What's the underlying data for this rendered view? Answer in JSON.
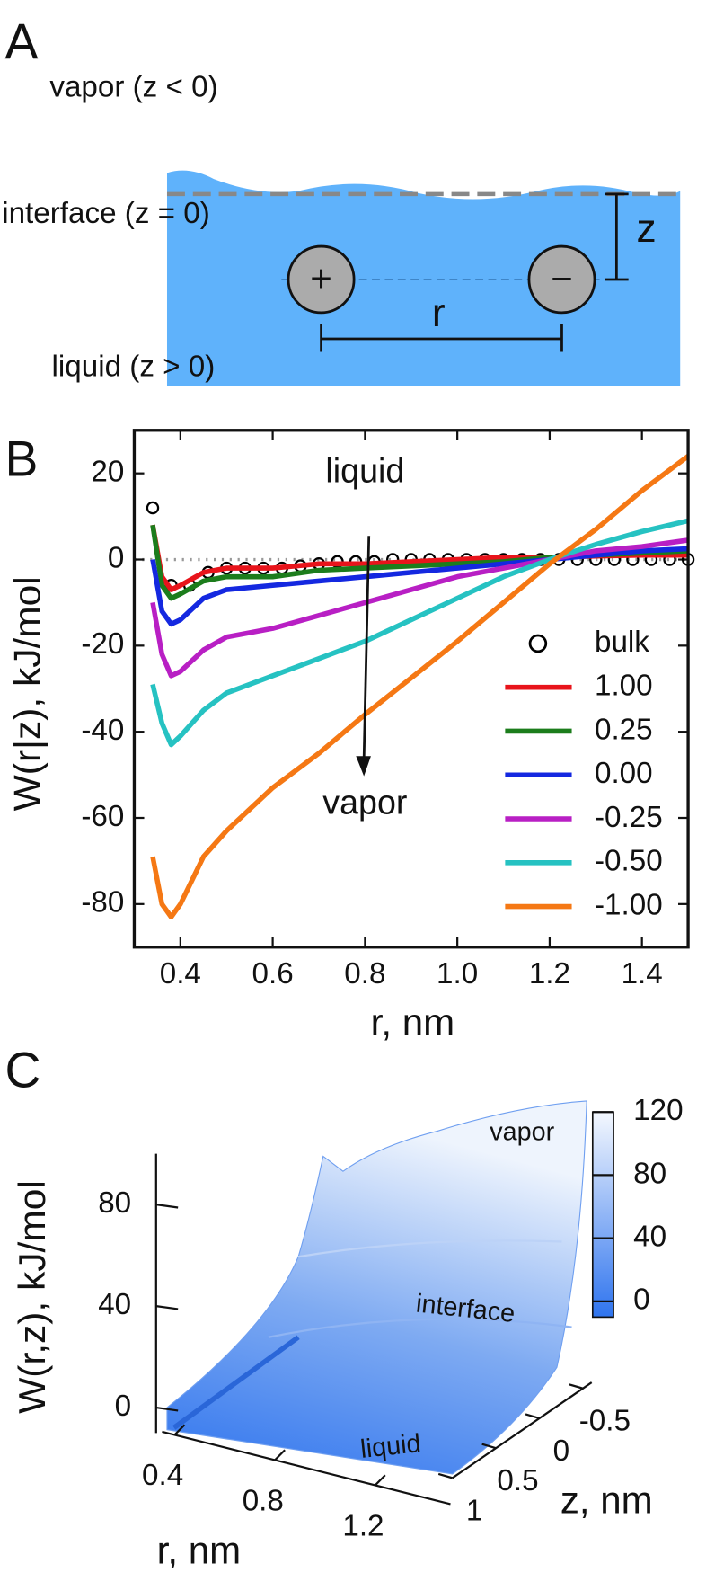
{
  "diagram": {
    "panel_label": "A",
    "vapor": "vapor (z < 0)",
    "interface": "interface (z = 0)",
    "liquid": "liquid (z > 0)",
    "cation": "+",
    "anion": "−",
    "r_label": "r",
    "z_label": "z"
  },
  "chart_data": [
    {
      "type": "line",
      "panel_label": "B",
      "xlabel": "r, nm",
      "ylabel": "W(r|z), kJ/mol",
      "xlim": [
        0.3,
        1.5
      ],
      "ylim": [
        -90,
        30
      ],
      "xticks": [
        0.4,
        0.6,
        0.8,
        {
          "value": 1,
          "label": "1.0"
        },
        1.2,
        1.4
      ],
      "yticks": [
        -80,
        -60,
        -40,
        -20,
        0,
        20
      ],
      "zero_line": true,
      "legend": "lower right",
      "annotations": [
        {
          "text": "liquid",
          "x": 0.8,
          "y": 20
        },
        {
          "text": "vapor",
          "x": 0.8,
          "y": -57
        }
      ],
      "series": [
        {
          "name": "bulk",
          "marker": "circle",
          "color": "#000000",
          "x": [
            0.34,
            0.38,
            0.42,
            0.46,
            0.5,
            0.54,
            0.58,
            0.62,
            0.66,
            0.7,
            0.74,
            0.78,
            0.82,
            0.86,
            0.9,
            0.94,
            0.98,
            1.02,
            1.06,
            1.1,
            1.14,
            1.18,
            1.22,
            1.26,
            1.3,
            1.34,
            1.38,
            1.42,
            1.46,
            1.5
          ],
          "values": [
            12,
            -6,
            -6,
            -3,
            -2,
            -2,
            -2,
            -2,
            -1.5,
            -1,
            -0.5,
            -0.5,
            -0.5,
            0,
            0,
            0,
            0,
            0,
            0,
            0,
            0,
            0,
            0,
            0,
            0,
            0,
            0,
            0,
            0,
            0
          ]
        },
        {
          "name": "1.00",
          "color": "#e8141b",
          "x": [
            0.34,
            0.36,
            0.38,
            0.4,
            0.45,
            0.5,
            0.6,
            0.7,
            0.8,
            0.9,
            1.0,
            1.1,
            1.2,
            1.3,
            1.4,
            1.5
          ],
          "values": [
            8,
            -4,
            -7,
            -6,
            -3,
            -2,
            -2,
            -1,
            -1,
            -0.5,
            0,
            0.5,
            0.5,
            0.8,
            1,
            1
          ]
        },
        {
          "name": "0.25",
          "color": "#1c7d1c",
          "x": [
            0.34,
            0.36,
            0.38,
            0.4,
            0.45,
            0.5,
            0.6,
            0.7,
            0.8,
            0.9,
            1.0,
            1.1,
            1.2,
            1.3,
            1.4,
            1.5
          ],
          "values": [
            8,
            -6,
            -9,
            -8,
            -5,
            -4,
            -4,
            -2.5,
            -2,
            -1.5,
            -1,
            -0.5,
            0.5,
            1,
            1.5,
            2
          ]
        },
        {
          "name": "0.00",
          "color": "#1428e0",
          "x": [
            0.34,
            0.36,
            0.38,
            0.4,
            0.45,
            0.5,
            0.6,
            0.7,
            0.8,
            0.9,
            1.0,
            1.1,
            1.2,
            1.3,
            1.4,
            1.5
          ],
          "values": [
            0,
            -12,
            -15,
            -14,
            -9,
            -7,
            -6,
            -5,
            -4,
            -3,
            -2,
            -1,
            0,
            1,
            2,
            2.5
          ]
        },
        {
          "name": "-0.25",
          "color": "#b81fc4",
          "x": [
            0.34,
            0.36,
            0.38,
            0.4,
            0.45,
            0.5,
            0.6,
            0.7,
            0.8,
            0.9,
            1.0,
            1.1,
            1.2,
            1.3,
            1.4,
            1.5
          ],
          "values": [
            -10,
            -22,
            -27,
            -26,
            -21,
            -18,
            -16,
            -13,
            -10,
            -7,
            -4,
            -2,
            0,
            2,
            3,
            4.5
          ]
        },
        {
          "name": "-0.50",
          "color": "#26c2c2",
          "x": [
            0.34,
            0.36,
            0.38,
            0.4,
            0.45,
            0.5,
            0.6,
            0.7,
            0.8,
            0.9,
            1.0,
            1.1,
            1.2,
            1.3,
            1.4,
            1.5
          ],
          "values": [
            -29,
            -38,
            -43,
            -41,
            -35,
            -31,
            -27,
            -23,
            -19,
            -14,
            -9,
            -4,
            0,
            3.5,
            6.5,
            9
          ]
        },
        {
          "name": "-1.00",
          "color": "#f57814",
          "x": [
            0.34,
            0.36,
            0.38,
            0.4,
            0.45,
            0.5,
            0.6,
            0.7,
            0.8,
            0.9,
            1.0,
            1.1,
            1.2,
            1.3,
            1.4,
            1.5
          ],
          "values": [
            -69,
            -80,
            -83,
            -80,
            -69,
            -63,
            -53,
            -45,
            -36,
            -27.5,
            -19,
            -10,
            -1,
            7,
            16,
            24
          ]
        }
      ]
    },
    {
      "type": "surface",
      "panel_label": "C",
      "xlabel": "r, nm",
      "ylabel": "W(r,z), kJ/mol",
      "zlabel": "z, nm",
      "xlim": [
        0.35,
        1.5
      ],
      "xticks": [
        0.4,
        0.8,
        1.2
      ],
      "zlim": [
        -0.6,
        1
      ],
      "zticks": [
        -0.5,
        0,
        0.5,
        1
      ],
      "ylim": [
        -10,
        100
      ],
      "yticks": [
        0,
        40,
        80
      ],
      "clim": [
        -10,
        120
      ],
      "cticks": [
        0,
        40,
        80,
        120
      ],
      "colors": [
        "#2f74ee",
        "#f4f8fe"
      ],
      "annotations": [
        "vapor",
        "interface",
        "liquid"
      ]
    }
  ]
}
